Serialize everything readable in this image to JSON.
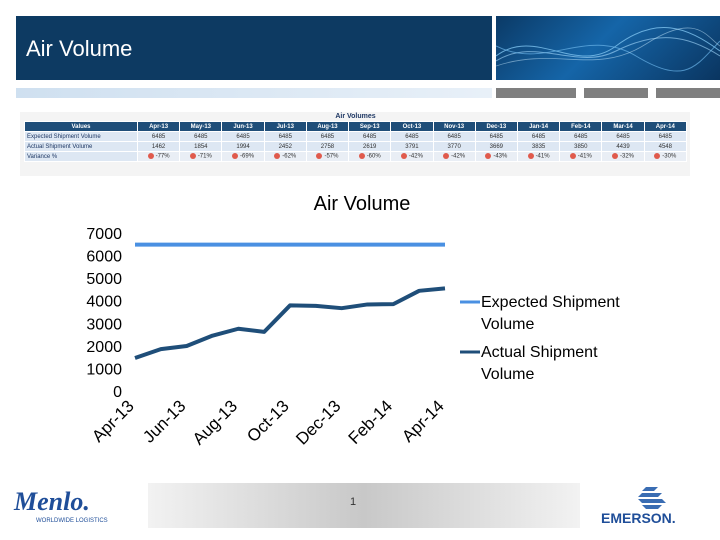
{
  "slide": {
    "title": "Air Volume",
    "page_number": "1"
  },
  "logos": {
    "left_main": "Menlo.",
    "left_sub": "WORLDWIDE LOGISTICS",
    "right": "EMERSON."
  },
  "table": {
    "title": "Air Volumes",
    "columns": [
      "Values",
      "Apr-13",
      "May-13",
      "Jun-13",
      "Jul-13",
      "Aug-13",
      "Sep-13",
      "Oct-13",
      "Nov-13",
      "Dec-13",
      "Jan-14",
      "Feb-14",
      "Mar-14",
      "Apr-14"
    ],
    "rows": [
      {
        "label": "Expected Shipment Volume",
        "values": [
          "6485",
          "6485",
          "6485",
          "6485",
          "6485",
          "6485",
          "6485",
          "6485",
          "6485",
          "6485",
          "6485",
          "6485",
          "6485"
        ]
      },
      {
        "label": "Actual Shipment Volume",
        "values": [
          "1462",
          "1854",
          "1994",
          "2452",
          "2758",
          "2619",
          "3791",
          "3770",
          "3669",
          "3835",
          "3850",
          "4439",
          "4548"
        ]
      },
      {
        "label": "Variance %",
        "values": [
          "-77%",
          "-71%",
          "-69%",
          "-62%",
          "-57%",
          "-60%",
          "-42%",
          "-42%",
          "-43%",
          "-41%",
          "-41%",
          "-32%",
          "-30%"
        ]
      }
    ]
  },
  "chart_data": {
    "type": "line",
    "title": "Air Volume",
    "categories": [
      "Apr-13",
      "May-13",
      "Jun-13",
      "Jul-13",
      "Aug-13",
      "Sep-13",
      "Oct-13",
      "Nov-13",
      "Dec-13",
      "Jan-14",
      "Feb-14",
      "Mar-14",
      "Apr-14"
    ],
    "tick_labels": [
      "Apr-13",
      "Jun-13",
      "Aug-13",
      "Oct-13",
      "Dec-13",
      "Feb-14",
      "Apr-14"
    ],
    "y_ticks": [
      "0",
      "1000",
      "2000",
      "3000",
      "4000",
      "5000",
      "6000",
      "7000"
    ],
    "ylim": [
      0,
      7000
    ],
    "legend_position": "right",
    "series": [
      {
        "name": "Expected Shipment Volume",
        "color": "#4a90e2",
        "values": [
          6485,
          6485,
          6485,
          6485,
          6485,
          6485,
          6485,
          6485,
          6485,
          6485,
          6485,
          6485,
          6485
        ]
      },
      {
        "name": "Actual Shipment Volume",
        "color": "#1f4e79",
        "values": [
          1462,
          1854,
          1994,
          2452,
          2758,
          2619,
          3791,
          3770,
          3669,
          3835,
          3850,
          4439,
          4548
        ]
      }
    ]
  },
  "colors": {
    "title_bar": "#0d3a62",
    "expected": "#4a90e2",
    "actual": "#1f4e79",
    "variance_dot": "#e05a4c"
  }
}
